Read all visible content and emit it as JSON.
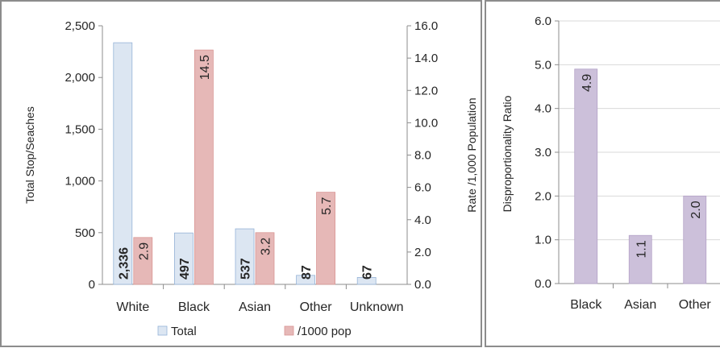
{
  "chart_data": [
    {
      "type": "bar",
      "categories": [
        "White",
        "Black",
        "Asian",
        "Other",
        "Unknown"
      ],
      "series": [
        {
          "name": "Total",
          "axis": "left",
          "values": [
            2336,
            497,
            537,
            87,
            67
          ],
          "labels": [
            "2,336",
            "497",
            "537",
            "87",
            "67"
          ],
          "color": "#dce6f2"
        },
        {
          "name": "/1000 pop",
          "axis": "right",
          "values": [
            2.9,
            14.5,
            3.2,
            5.7,
            null
          ],
          "labels": [
            "2.9",
            "14.5",
            "3.2",
            "5.7",
            null
          ],
          "color": "#e6b8b7"
        }
      ],
      "ylabel": "Total Stop/Seaches",
      "y2label": "Rate /1,000 Population",
      "ylim": [
        0,
        2500
      ],
      "yticks": [
        "0",
        "500",
        "1,000",
        "1,500",
        "2,000",
        "2,500"
      ],
      "y2lim": [
        0,
        16
      ],
      "y2ticks": [
        "0.0",
        "2.0",
        "4.0",
        "6.0",
        "8.0",
        "10.0",
        "12.0",
        "14.0",
        "16.0"
      ],
      "grid": false,
      "legend": "bottom"
    },
    {
      "type": "bar",
      "categories": [
        "Black",
        "Asian",
        "Other"
      ],
      "values": [
        4.9,
        1.1,
        2.0
      ],
      "labels": [
        "4.9",
        "1.1",
        "2.0"
      ],
      "color": "#ccc0da",
      "ylabel": "Disproportionality Ratio",
      "ylim": [
        0,
        6
      ],
      "yticks": [
        "0.0",
        "1.0",
        "2.0",
        "3.0",
        "4.0",
        "5.0",
        "6.0"
      ],
      "grid": true,
      "legend": "none"
    }
  ]
}
